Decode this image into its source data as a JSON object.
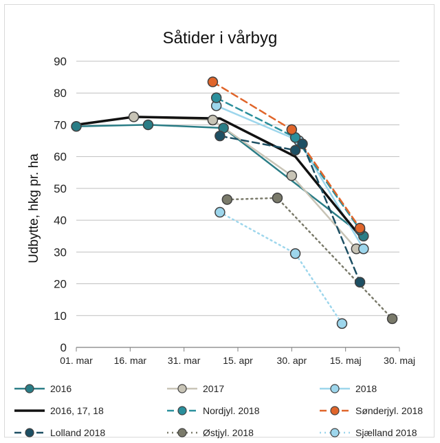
{
  "chart_data": {
    "type": "line",
    "title": "Såtider i vårbyg",
    "xlabel": "",
    "ylabel": "Udbytte, hkg pr. ha",
    "ylim": [
      0,
      90
    ],
    "yticks": [
      0,
      10,
      20,
      30,
      40,
      50,
      60,
      70,
      80,
      90
    ],
    "xlim": [
      "2018-03-01",
      "2018-05-30"
    ],
    "xticks": [
      {
        "date": "2018-03-01",
        "label": "01. mar"
      },
      {
        "date": "2018-03-16",
        "label": "16. mar"
      },
      {
        "date": "2018-03-31",
        "label": "31. mar"
      },
      {
        "date": "2018-04-15",
        "label": "15. apr"
      },
      {
        "date": "2018-04-30",
        "label": "30. apr"
      },
      {
        "date": "2018-05-15",
        "label": "15. maj"
      },
      {
        "date": "2018-05-30",
        "label": "30. maj"
      }
    ],
    "grid": "horizontal",
    "legend_placement": "bottom",
    "series": [
      {
        "name": "2016",
        "color": "#2a7d86",
        "style": "solid",
        "marker": true,
        "x": [
          "2018-03-01",
          "2018-03-21",
          "2018-04-11",
          "2018-05-20"
        ],
        "y": [
          69.5,
          70,
          69,
          35
        ]
      },
      {
        "name": "2017",
        "color": "#c8c4b6",
        "style": "solid",
        "marker": true,
        "x": [
          "2018-03-17",
          "2018-04-08",
          "2018-04-30",
          "2018-05-18"
        ],
        "y": [
          72.5,
          71.5,
          54,
          31
        ]
      },
      {
        "name": "2018",
        "color": "#9dd6ec",
        "style": "solid",
        "marker": true,
        "x": [
          "2018-04-09",
          "2018-05-02",
          "2018-05-20"
        ],
        "y": [
          76,
          65,
          31
        ]
      },
      {
        "name": "2016, 17, 18",
        "color": "#111111",
        "style": "solid",
        "marker": false,
        "width": 3.5,
        "x": [
          "2018-03-01",
          "2018-03-17",
          "2018-04-10",
          "2018-05-01",
          "2018-05-19"
        ],
        "y": [
          70,
          72.5,
          72,
          60,
          35
        ]
      },
      {
        "name": "Nordjyl. 2018",
        "color": "#2a8f9c",
        "style": "dashed",
        "marker": true,
        "x": [
          "2018-04-09",
          "2018-05-01",
          "2018-05-19"
        ],
        "y": [
          78.5,
          66,
          37
        ]
      },
      {
        "name": "Sønderjyl. 2018",
        "color": "#e0652a",
        "style": "dashed",
        "marker": true,
        "x": [
          "2018-04-08",
          "2018-04-30",
          "2018-05-19"
        ],
        "y": [
          83.5,
          68.5,
          37.5
        ]
      },
      {
        "name": "Lolland 2018",
        "color": "#1d4f63",
        "style": "dashed",
        "marker": true,
        "x": [
          "2018-04-10",
          "2018-05-01",
          "2018-05-03",
          "2018-05-19"
        ],
        "y": [
          66.5,
          62,
          64,
          20.5
        ]
      },
      {
        "name": "Østjyl. 2018",
        "color": "#7a7a6a",
        "style": "dotted",
        "marker": true,
        "x": [
          "2018-04-12",
          "2018-04-26",
          "2018-05-28"
        ],
        "y": [
          46.5,
          47,
          9
        ]
      },
      {
        "name": "Sjælland 2018",
        "color": "#9dd6ec",
        "style": "dotted",
        "marker": true,
        "x": [
          "2018-04-10",
          "2018-05-01",
          "2018-05-14"
        ],
        "y": [
          42.5,
          29.5,
          7.5
        ]
      }
    ]
  }
}
